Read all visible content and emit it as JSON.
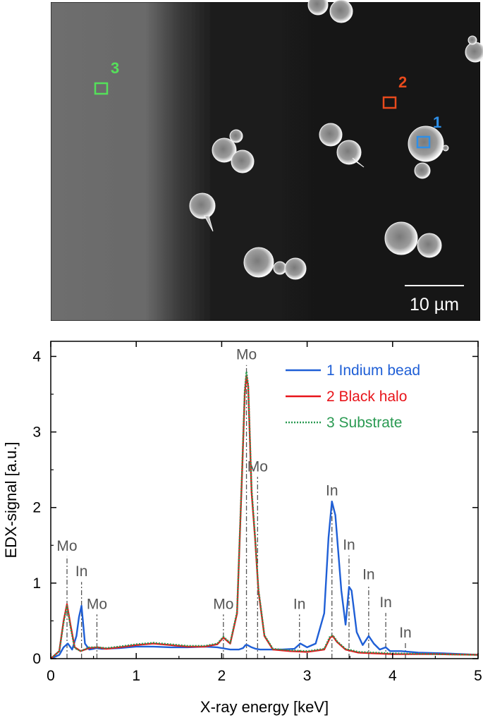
{
  "sem_image": {
    "roi_labels": [
      "3",
      "2",
      "1"
    ],
    "roi_colors": [
      "#55e05a",
      "#e84a1c",
      "#2e8fe8"
    ],
    "scale_bar_label": "10 µm"
  },
  "colors": {
    "indium": "#1f5fd6",
    "halo": "#e8141a",
    "substrate": "#2a9a52",
    "marker": "#555555",
    "axis": "#000000"
  },
  "chart_data": {
    "type": "line",
    "xlabel": "X-ray energy [keV]",
    "ylabel": "EDX-signal [a.u.]",
    "xlim": [
      0,
      5
    ],
    "ylim": [
      0,
      4.2
    ],
    "xticks": [
      0,
      1,
      2,
      3,
      4,
      5
    ],
    "yticks": [
      0,
      1,
      2,
      3,
      4
    ],
    "legend_position": "top-right",
    "series": [
      {
        "name": "1 Indium bead",
        "style": "solid",
        "x": [
          0.0,
          0.1,
          0.15,
          0.2,
          0.25,
          0.3,
          0.33,
          0.36,
          0.4,
          0.45,
          0.5,
          0.53,
          0.6,
          0.8,
          1.0,
          1.2,
          1.4,
          1.6,
          1.8,
          1.95,
          2.0,
          2.1,
          2.2,
          2.25,
          2.28,
          2.3,
          2.35,
          2.4,
          2.45,
          2.55,
          2.7,
          2.85,
          2.92,
          3.0,
          3.1,
          3.2,
          3.25,
          3.29,
          3.33,
          3.4,
          3.45,
          3.49,
          3.52,
          3.58,
          3.65,
          3.72,
          3.78,
          3.85,
          3.92,
          3.97,
          4.1,
          4.3,
          4.6,
          5.0
        ],
        "y": [
          0.0,
          0.05,
          0.15,
          0.2,
          0.12,
          0.3,
          0.55,
          0.7,
          0.2,
          0.12,
          0.13,
          0.14,
          0.13,
          0.14,
          0.16,
          0.16,
          0.15,
          0.15,
          0.16,
          0.15,
          0.14,
          0.12,
          0.12,
          0.14,
          0.18,
          0.18,
          0.15,
          0.13,
          0.12,
          0.12,
          0.12,
          0.13,
          0.2,
          0.15,
          0.2,
          0.6,
          1.6,
          2.08,
          1.9,
          0.9,
          0.45,
          0.95,
          0.9,
          0.35,
          0.18,
          0.3,
          0.2,
          0.12,
          0.15,
          0.1,
          0.1,
          0.08,
          0.07,
          0.05
        ]
      },
      {
        "name": "2 Black halo",
        "style": "solid",
        "x": [
          0.0,
          0.1,
          0.15,
          0.19,
          0.23,
          0.28,
          0.35,
          0.45,
          0.55,
          0.65,
          0.8,
          1.0,
          1.2,
          1.4,
          1.6,
          1.8,
          1.95,
          2.02,
          2.1,
          2.18,
          2.24,
          2.27,
          2.29,
          2.31,
          2.35,
          2.39,
          2.43,
          2.5,
          2.6,
          2.8,
          3.0,
          3.2,
          3.27,
          3.3,
          3.35,
          3.45,
          3.6,
          3.8,
          4.0,
          4.5,
          5.0
        ],
        "y": [
          0.0,
          0.1,
          0.5,
          0.72,
          0.45,
          0.15,
          0.1,
          0.14,
          0.15,
          0.13,
          0.15,
          0.18,
          0.2,
          0.18,
          0.16,
          0.16,
          0.19,
          0.28,
          0.2,
          0.6,
          2.5,
          3.5,
          3.75,
          3.6,
          2.2,
          1.6,
          0.9,
          0.3,
          0.12,
          0.1,
          0.09,
          0.12,
          0.28,
          0.3,
          0.22,
          0.12,
          0.08,
          0.07,
          0.06,
          0.06,
          0.05
        ]
      },
      {
        "name": "3 Substrate",
        "style": "dotted",
        "x": [
          0.0,
          0.1,
          0.15,
          0.19,
          0.23,
          0.28,
          0.35,
          0.45,
          0.55,
          0.65,
          0.8,
          1.0,
          1.2,
          1.4,
          1.6,
          1.8,
          1.95,
          2.02,
          2.1,
          2.18,
          2.24,
          2.27,
          2.29,
          2.31,
          2.35,
          2.39,
          2.43,
          2.5,
          2.6,
          2.8,
          3.0,
          3.2,
          3.27,
          3.3,
          3.35,
          3.45,
          3.6,
          3.8,
          4.0,
          4.5,
          5.0
        ],
        "y": [
          0.0,
          0.1,
          0.48,
          0.7,
          0.42,
          0.14,
          0.1,
          0.15,
          0.15,
          0.14,
          0.16,
          0.19,
          0.21,
          0.19,
          0.17,
          0.17,
          0.2,
          0.29,
          0.21,
          0.62,
          2.55,
          3.55,
          3.8,
          3.62,
          2.25,
          1.62,
          0.92,
          0.31,
          0.13,
          0.11,
          0.1,
          0.13,
          0.3,
          0.31,
          0.23,
          0.13,
          0.09,
          0.08,
          0.07,
          0.06,
          0.05
        ]
      }
    ],
    "annotations": [
      {
        "label": "Mo",
        "x": 0.19,
        "y": 0.72,
        "text_y": 1.43
      },
      {
        "label": "In",
        "x": 0.36,
        "y": 0.7,
        "text_y": 1.09
      },
      {
        "label": "Mo",
        "x": 0.54,
        "y": 0.15,
        "text_y": 0.66
      },
      {
        "label": "Mo",
        "x": 2.02,
        "y": 0.28,
        "text_y": 0.66
      },
      {
        "label": "Mo",
        "x": 2.29,
        "y": 3.8,
        "text_y": 3.96
      },
      {
        "label": "Mo",
        "x": 2.42,
        "y": 1.6,
        "text_y": 2.48
      },
      {
        "label": "In",
        "x": 2.91,
        "y": 0.2,
        "text_y": 0.66
      },
      {
        "label": "In",
        "x": 3.29,
        "y": 2.08,
        "text_y": 2.16
      },
      {
        "label": "In",
        "x": 3.49,
        "y": 0.95,
        "text_y": 1.44
      },
      {
        "label": "In",
        "x": 3.72,
        "y": 0.3,
        "text_y": 1.05
      },
      {
        "label": "In",
        "x": 3.92,
        "y": 0.15,
        "text_y": 0.68
      },
      {
        "label": "In",
        "x": 4.15,
        "y": 0.1,
        "text_y": 0.28
      }
    ]
  }
}
